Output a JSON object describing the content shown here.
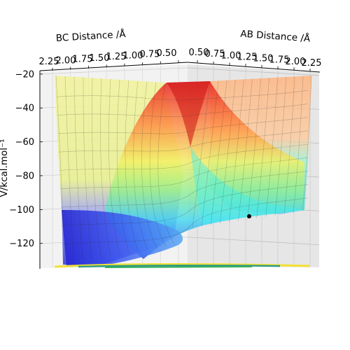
{
  "chart_data": {
    "type": "surface3d",
    "x_axis": {
      "label": "BC Distance /Å",
      "ticks": [
        "2.25",
        "2.00",
        "1.75",
        "1.50",
        "1.25",
        "1.00",
        "0.75",
        "0.50"
      ]
    },
    "y_axis": {
      "label": "AB Distance /Å",
      "ticks": [
        "0.50",
        "0.75",
        "1.00",
        "1.25",
        "1.50",
        "1.75",
        "2.00",
        "2.25"
      ]
    },
    "z_axis": {
      "label": "V/kcal.mol⁻¹",
      "ticks": [
        {
          "label": "−20",
          "value": -20
        },
        {
          "label": "−40",
          "value": -40
        },
        {
          "label": "−60",
          "value": -60
        },
        {
          "label": "−80",
          "value": -80
        },
        {
          "label": "−100",
          "value": -100
        },
        {
          "label": "−120",
          "value": -120
        }
      ]
    },
    "z_range": [
      -135,
      -18
    ],
    "colormap": "jet",
    "grid": true,
    "marker": {
      "color": "#000000",
      "z": -104
    }
  }
}
